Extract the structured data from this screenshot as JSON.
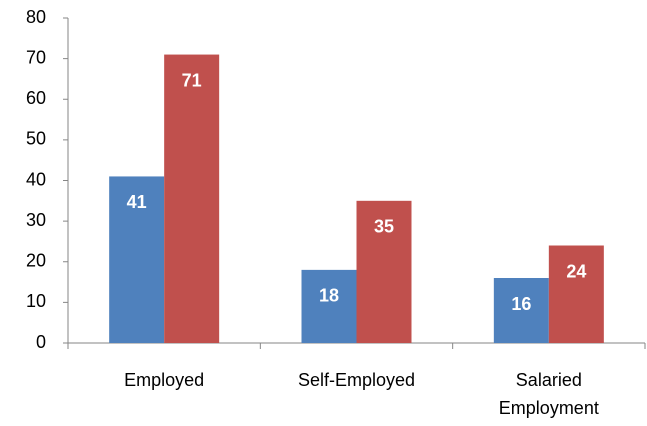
{
  "chart_data": {
    "type": "bar",
    "categories": [
      "Employed",
      "Self-Employed",
      "Salaried Employment"
    ],
    "series": [
      {
        "color": "#4f81bd",
        "values": [
          41,
          18,
          16
        ]
      },
      {
        "color": "#c0504d",
        "values": [
          71,
          35,
          24
        ]
      }
    ],
    "ylim": [
      0,
      80
    ],
    "yticks": [
      0,
      10,
      20,
      30,
      40,
      50,
      60,
      70,
      80
    ],
    "grid": false
  }
}
